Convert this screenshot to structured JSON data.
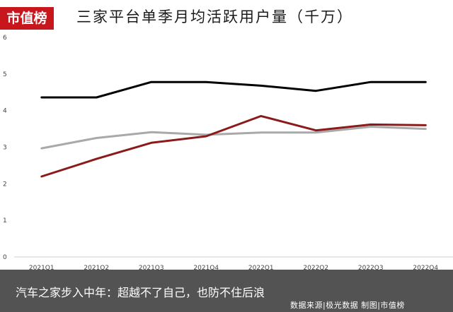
{
  "logo": {
    "text": "市值榜"
  },
  "caption": "汽车之家步入中年：超越不了自己，也防不住后浪",
  "source": "数据来源|极光数据  制图|市值榜",
  "chart_data": {
    "type": "line",
    "title": "三家平台单季月均活跃用户量（千万）",
    "xlabel": "",
    "ylabel": "",
    "ylim": [
      0,
      6
    ],
    "yticks": [
      "0",
      "1",
      "2",
      "3",
      "4",
      "5",
      "6"
    ],
    "grid": false,
    "legend": "",
    "categories": [
      "2021Q1",
      "2021Q2",
      "2021Q3",
      "2021Q4",
      "2022Q1",
      "2022Q2",
      "2022Q3",
      "2022Q4"
    ],
    "series": [
      {
        "color": "#000000",
        "values": [
          4.36,
          4.36,
          4.78,
          4.78,
          4.68,
          4.54,
          4.78,
          4.78
        ]
      },
      {
        "color": "#8b1a1a",
        "values": [
          2.2,
          2.68,
          3.12,
          3.3,
          3.85,
          3.46,
          3.62,
          3.6
        ]
      },
      {
        "color": "#a9a9a9",
        "values": [
          2.97,
          3.25,
          3.41,
          3.34,
          3.4,
          3.4,
          3.56,
          3.5
        ]
      }
    ]
  }
}
